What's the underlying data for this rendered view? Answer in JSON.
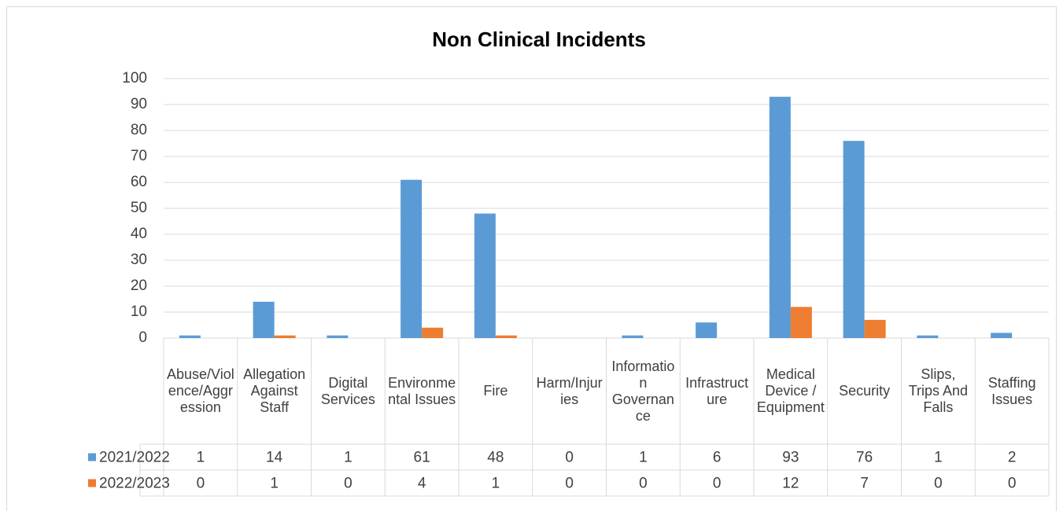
{
  "chart_data": {
    "type": "bar",
    "title": "Non Clinical Incidents",
    "categories": [
      "Abuse/Violence/Aggression",
      "Allegation Against Staff",
      "Digital Services",
      "Environmental Issues",
      "Fire",
      "Harm/Injuries",
      "Information Governance",
      "Infrastructure",
      "Medical Device / Equipment",
      "Security",
      "Slips, Trips And Falls",
      "Staffing Issues"
    ],
    "series": [
      {
        "name": "2021/2022",
        "color": "#5b9bd5",
        "values": [
          1,
          14,
          1,
          61,
          48,
          0,
          1,
          6,
          93,
          76,
          1,
          2
        ]
      },
      {
        "name": "2022/2023",
        "color": "#ed7d31",
        "values": [
          0,
          1,
          0,
          4,
          1,
          0,
          0,
          0,
          12,
          7,
          0,
          0
        ]
      }
    ],
    "ylim": [
      0,
      100
    ],
    "yticks": [
      0,
      10,
      20,
      30,
      40,
      50,
      60,
      70,
      80,
      90,
      100
    ],
    "grid": true
  }
}
